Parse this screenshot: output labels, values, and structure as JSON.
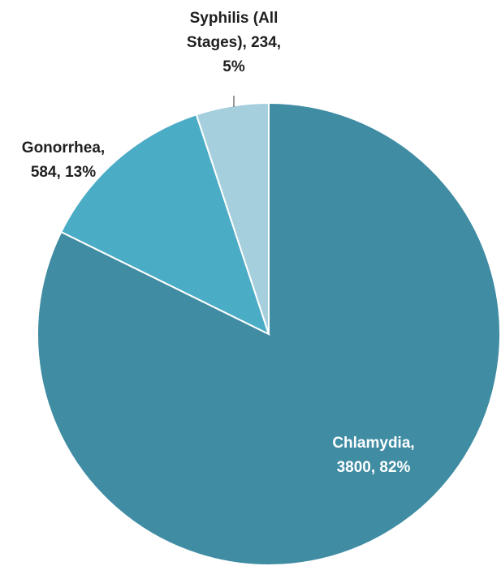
{
  "chart_data": {
    "type": "pie",
    "values": [
      3800,
      584,
      234
    ],
    "value_labels": [
      "Chlamydia, 3800, 82%",
      "Gonorrhea, 584, 13%",
      "Syphilis (All Stages), 234, 5%"
    ],
    "colors": [
      "#3f8ca3",
      "#4bacc6",
      "#a5cfdd"
    ],
    "label_colors": [
      "#ffffff",
      "#1f1f1f",
      "#1f1f1f"
    ]
  }
}
